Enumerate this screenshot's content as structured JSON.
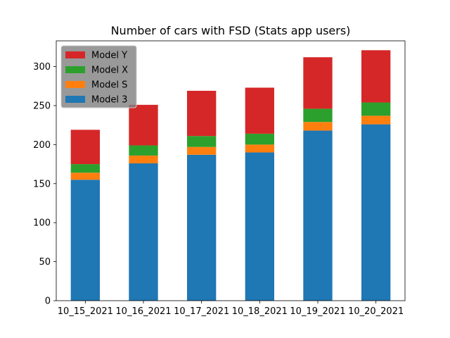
{
  "chart_data": {
    "type": "bar",
    "stacked": true,
    "title": "Number of cars with FSD (Stats app users)",
    "xlabel": "",
    "ylabel": "",
    "ylim": [
      0,
      333
    ],
    "yticks": [
      0,
      50,
      100,
      150,
      200,
      250,
      300
    ],
    "categories": [
      "10_15_2021",
      "10_16_2021",
      "10_17_2021",
      "10_18_2021",
      "10_19_2021",
      "10_20_2021"
    ],
    "series": [
      {
        "name": "Model 3",
        "color": "#1f77b4",
        "values": [
          155,
          176,
          187,
          190,
          218,
          226
        ]
      },
      {
        "name": "Model S",
        "color": "#ff7f0e",
        "values": [
          9,
          10,
          10,
          10,
          11,
          11
        ]
      },
      {
        "name": "Model X",
        "color": "#2ca02c",
        "values": [
          11,
          13,
          14,
          14,
          17,
          17
        ]
      },
      {
        "name": "Model Y",
        "color": "#d62728",
        "values": [
          44,
          52,
          58,
          59,
          66,
          67
        ]
      }
    ],
    "legend": {
      "position": "top-left",
      "order": [
        "Model Y",
        "Model X",
        "Model S",
        "Model 3"
      ],
      "background": "#808080"
    }
  }
}
